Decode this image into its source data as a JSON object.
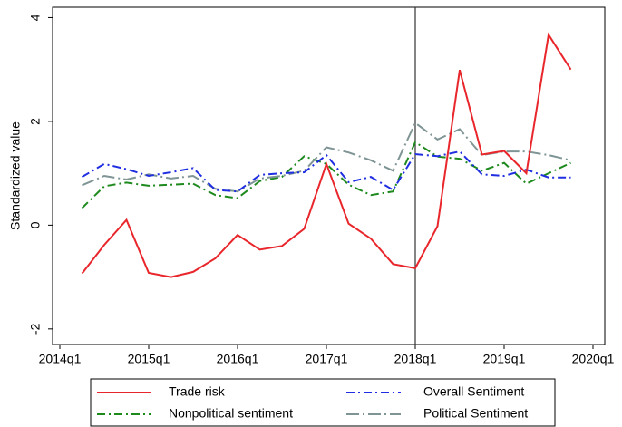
{
  "chart_data": {
    "type": "line",
    "y_label": "Standardized value",
    "x": [
      "2014q2",
      "2014q3",
      "2014q4",
      "2015q1",
      "2015q2",
      "2015q3",
      "2015q4",
      "2016q1",
      "2016q2",
      "2016q3",
      "2016q4",
      "2017q1",
      "2017q2",
      "2017q3",
      "2017q4",
      "2018q1",
      "2018q2",
      "2018q3",
      "2018q4",
      "2019q1",
      "2019q2",
      "2019q3",
      "2019q4"
    ],
    "xticks": [
      "2014q1",
      "2015q1",
      "2016q1",
      "2017q1",
      "2018q1",
      "2019q1",
      "2020q1"
    ],
    "ylim": [
      -2.3,
      4.2
    ],
    "yticks": [
      -2,
      0,
      2,
      4
    ],
    "vline": "2018q1",
    "legend": "bottom",
    "series": [
      {
        "name": "Trade risk",
        "color": "#e8262b",
        "style": "solid",
        "values": [
          -0.93,
          -0.38,
          0.1,
          -0.92,
          -1.0,
          -0.9,
          -0.64,
          -0.19,
          -0.47,
          -0.4,
          -0.07,
          1.18,
          0.03,
          -0.26,
          -0.75,
          -0.83,
          -0.02,
          2.99,
          1.36,
          1.43,
          1.0,
          3.67,
          3.0
        ]
      },
      {
        "name": "Overall Sentiment",
        "color": "#1f2ee0",
        "style": "dashdot",
        "values": [
          0.93,
          1.18,
          1.08,
          0.95,
          1.02,
          1.1,
          0.68,
          0.65,
          0.97,
          1.0,
          1.02,
          1.35,
          0.83,
          0.93,
          0.68,
          1.37,
          1.33,
          1.42,
          0.98,
          0.95,
          1.07,
          0.92,
          0.92
        ]
      },
      {
        "name": "Nonpolitical sentiment",
        "color": "#1e8a1e",
        "style": "dashdot",
        "values": [
          0.33,
          0.75,
          0.82,
          0.76,
          0.78,
          0.8,
          0.58,
          0.52,
          0.85,
          0.93,
          1.33,
          1.18,
          0.78,
          0.58,
          0.65,
          1.6,
          1.32,
          1.28,
          1.05,
          1.2,
          0.8,
          1.0,
          1.2
        ]
      },
      {
        "name": "Political Sentiment",
        "color": "#7f9494",
        "style": "longdashdot",
        "values": [
          0.77,
          0.95,
          0.88,
          0.98,
          0.9,
          0.95,
          0.7,
          0.65,
          0.9,
          0.95,
          1.05,
          1.5,
          1.4,
          1.25,
          1.05,
          1.97,
          1.65,
          1.85,
          1.35,
          1.42,
          1.42,
          1.35,
          1.25
        ]
      }
    ]
  }
}
